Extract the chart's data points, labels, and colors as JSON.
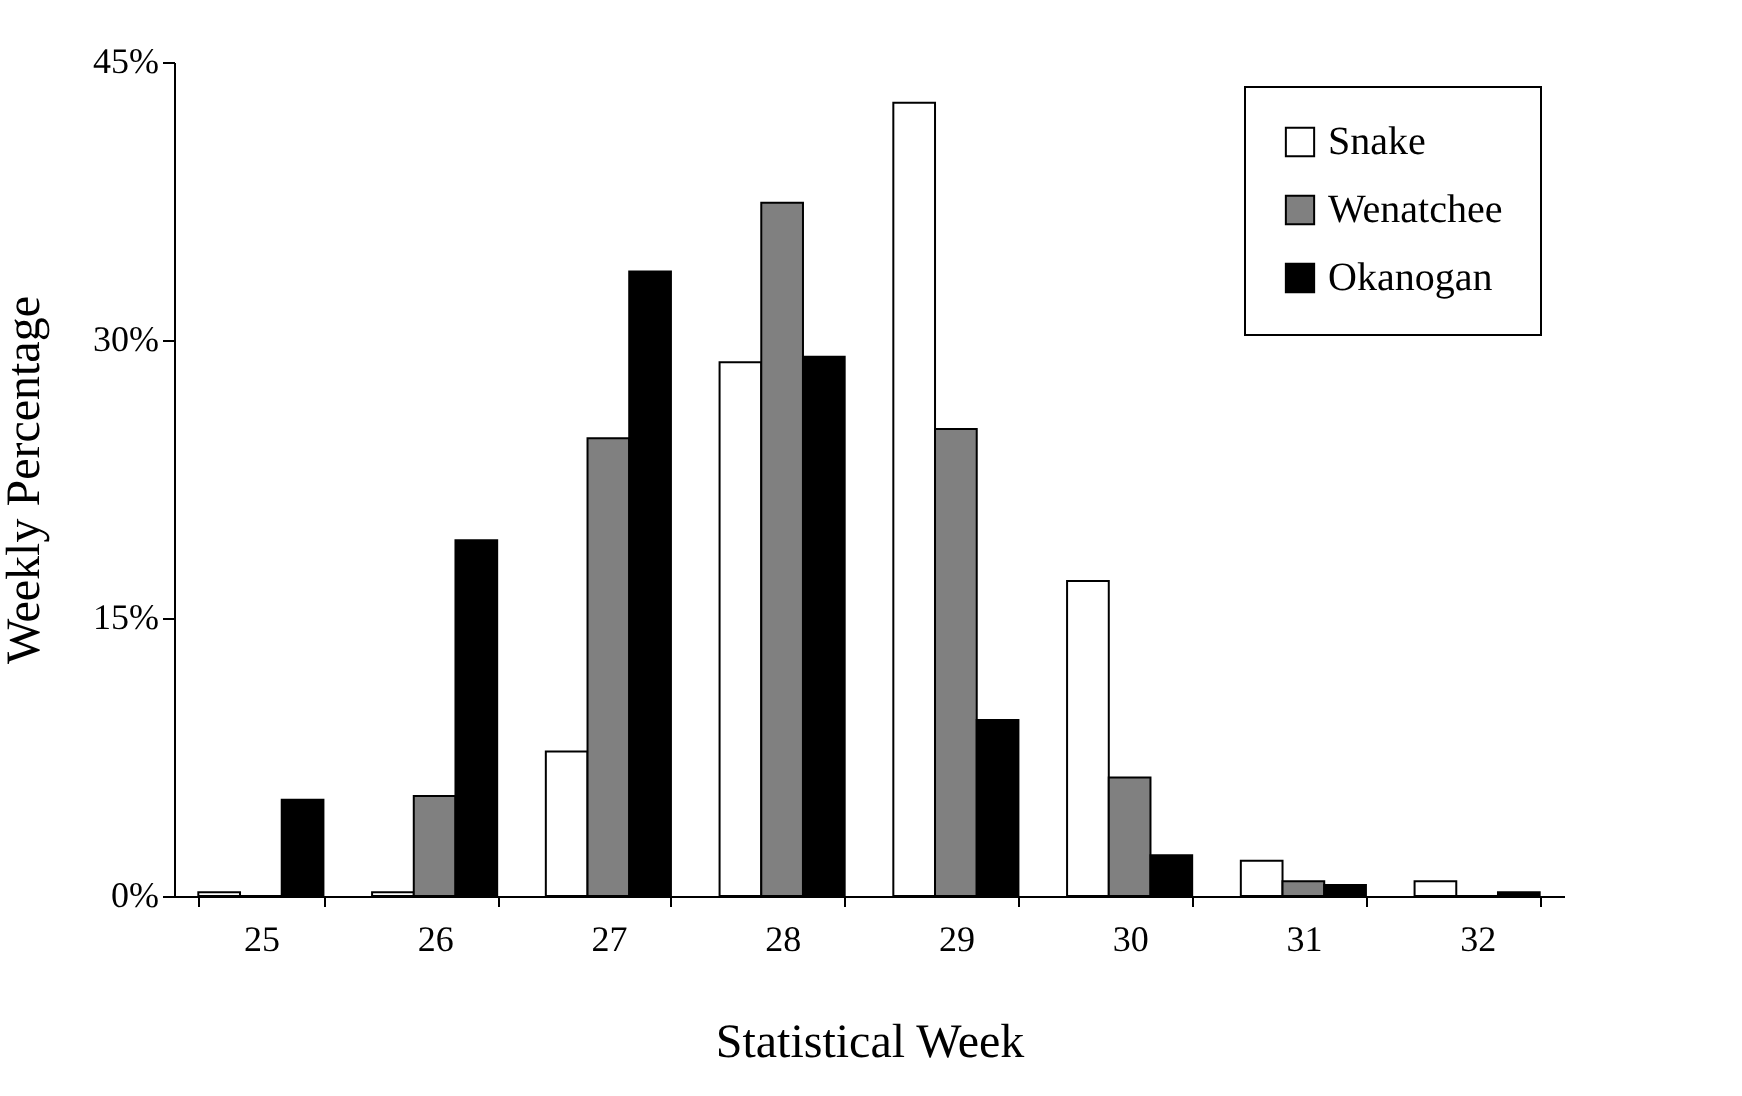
{
  "chart_data": {
    "type": "bar",
    "xlabel": "Statistical Week",
    "ylabel": "Weekly Percentage",
    "categories": [
      "25",
      "26",
      "27",
      "28",
      "29",
      "30",
      "31",
      "32"
    ],
    "series": [
      {
        "name": "Snake",
        "color": "#ffffff",
        "values": [
          0.2,
          0.2,
          7.8,
          28.8,
          42.8,
          17.0,
          1.9,
          0.8
        ]
      },
      {
        "name": "Wenatchee",
        "color": "#808080",
        "values": [
          0,
          5.4,
          24.7,
          37.4,
          25.2,
          6.4,
          0.8,
          0
        ]
      },
      {
        "name": "Okanogan",
        "color": "#000000",
        "values": [
          5.2,
          19.2,
          33.7,
          29.1,
          9.5,
          2.2,
          0.6,
          0.2
        ]
      }
    ],
    "ylim": [
      0,
      45
    ],
    "yticks": [
      {
        "value": 0,
        "label": "0%"
      },
      {
        "value": 15,
        "label": "15%"
      },
      {
        "value": 30,
        "label": "30%"
      },
      {
        "value": 45,
        "label": "45%"
      }
    ],
    "grid": false,
    "legend": "top right"
  }
}
